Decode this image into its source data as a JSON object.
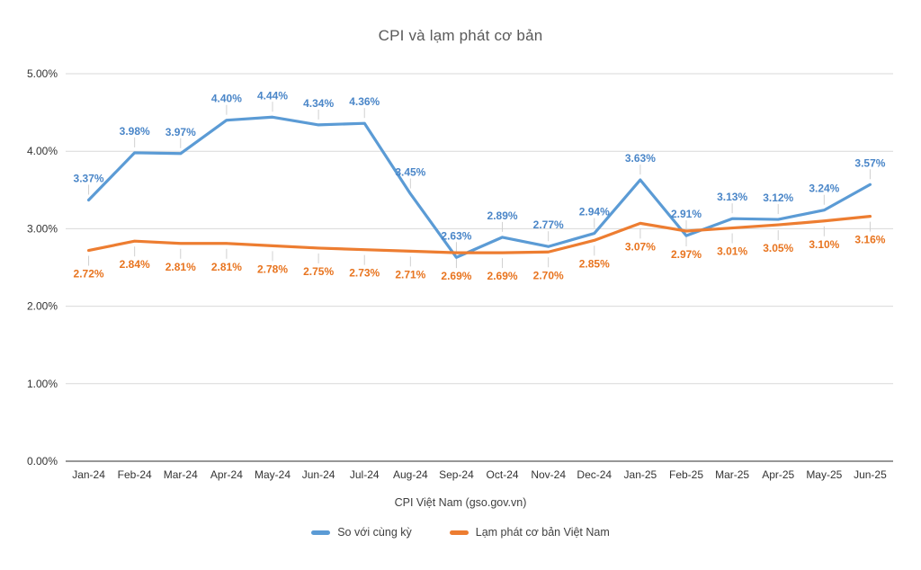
{
  "chart_data": {
    "type": "line",
    "title": "CPI và lạm phát cơ bản",
    "xlabel": "CPI Việt Nam (gso.gov.vn)",
    "ylabel": "",
    "ylim": [
      0,
      5
    ],
    "grid": true,
    "legend_position": "bottom",
    "yticks": [
      "0.00%",
      "1.00%",
      "2.00%",
      "3.00%",
      "4.00%",
      "5.00%"
    ],
    "categories": [
      "Jan-24",
      "Feb-24",
      "Mar-24",
      "Apr-24",
      "May-24",
      "Jun-24",
      "Jul-24",
      "Aug-24",
      "Sep-24",
      "Oct-24",
      "Nov-24",
      "Dec-24",
      "Jan-25",
      "Feb-25",
      "Mar-25",
      "Apr-25",
      "May-25",
      "Jun-25"
    ],
    "series": [
      {
        "name": "So với cùng kỳ",
        "color": "#5b9bd5",
        "label_color": "#4a86c8",
        "label_position": "above",
        "values": [
          3.37,
          3.98,
          3.97,
          4.4,
          4.44,
          4.34,
          4.36,
          3.45,
          2.63,
          2.89,
          2.77,
          2.94,
          3.63,
          2.91,
          3.13,
          3.12,
          3.24,
          3.57
        ],
        "labels": [
          "3.37%",
          "3.98%",
          "3.97%",
          "4.40%",
          "4.44%",
          "4.34%",
          "4.36%",
          "3.45%",
          "2.63%",
          "2.89%",
          "2.77%",
          "2.94%",
          "3.63%",
          "2.91%",
          "3.13%",
          "3.12%",
          "3.24%",
          "3.57%"
        ]
      },
      {
        "name": "Lạm phát cơ bản Việt Nam",
        "color": "#ed7d31",
        "label_color": "#e8741f",
        "label_position": "below",
        "values": [
          2.72,
          2.84,
          2.81,
          2.81,
          2.78,
          2.75,
          2.73,
          2.71,
          2.69,
          2.69,
          2.7,
          2.85,
          3.07,
          2.97,
          3.01,
          3.05,
          3.1,
          3.16
        ],
        "labels": [
          "2.72%",
          "2.84%",
          "2.81%",
          "2.81%",
          "2.78%",
          "2.75%",
          "2.73%",
          "2.71%",
          "2.69%",
          "2.69%",
          "2.70%",
          "2.85%",
          "3.07%",
          "2.97%",
          "3.01%",
          "3.05%",
          "3.10%",
          "3.16%"
        ]
      }
    ],
    "colors": {
      "grid": "#d9d9d9",
      "axis": "#595959",
      "tick_label": "#333333",
      "title": "#595959",
      "leader": "#d0d0d0",
      "background": "#ffffff"
    }
  }
}
